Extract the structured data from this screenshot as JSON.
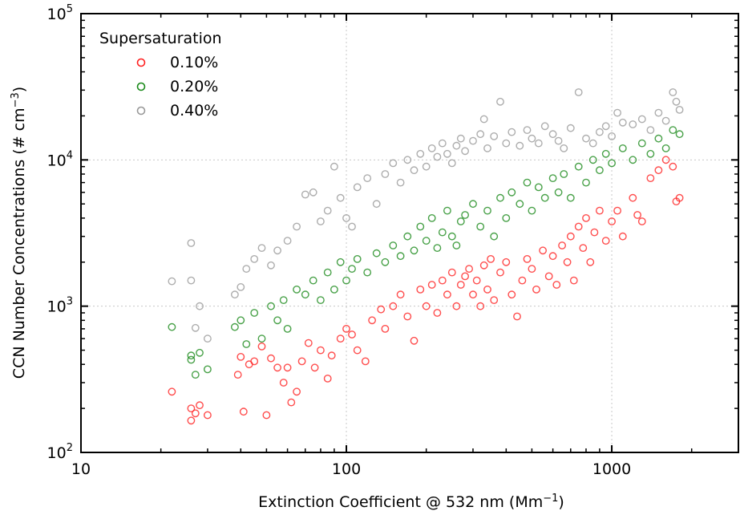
{
  "chart_data": {
    "type": "scatter",
    "xlabel_main": "Extinction Coefficient @ 532 nm (Mm",
    "xlabel_sup": "−1",
    "xlabel_end": ")",
    "ylabel_main": "CCN Number Concentrations (# cm",
    "ylabel_sup": "−3",
    "ylabel_end": ")",
    "x_scale": "log",
    "y_scale": "log",
    "xlim": [
      10,
      3000
    ],
    "ylim": [
      100,
      100000
    ],
    "x_ticks": [
      {
        "value": 10,
        "label": "10"
      },
      {
        "value": 100,
        "label": "100"
      },
      {
        "value": 1000,
        "label": "1000"
      }
    ],
    "y_ticks": [
      {
        "value": 100,
        "base": "10",
        "exp": "2"
      },
      {
        "value": 1000,
        "base": "10",
        "exp": "3"
      },
      {
        "value": 10000,
        "base": "10",
        "exp": "4"
      },
      {
        "value": 100000,
        "base": "10",
        "exp": "5"
      }
    ],
    "grid": true,
    "legend": {
      "title": "Supersaturation",
      "placement": "top-left"
    },
    "series": [
      {
        "name": "0.10%",
        "color": "#ff2020",
        "points": [
          [
            22,
            260
          ],
          [
            26,
            165
          ],
          [
            26,
            200
          ],
          [
            27,
            185
          ],
          [
            28,
            210
          ],
          [
            30,
            180
          ],
          [
            39,
            340
          ],
          [
            40,
            450
          ],
          [
            41,
            190
          ],
          [
            43,
            400
          ],
          [
            45,
            420
          ],
          [
            48,
            530
          ],
          [
            50,
            180
          ],
          [
            52,
            440
          ],
          [
            55,
            380
          ],
          [
            58,
            300
          ],
          [
            60,
            380
          ],
          [
            62,
            220
          ],
          [
            65,
            260
          ],
          [
            68,
            420
          ],
          [
            72,
            560
          ],
          [
            76,
            380
          ],
          [
            80,
            500
          ],
          [
            85,
            320
          ],
          [
            88,
            460
          ],
          [
            95,
            600
          ],
          [
            100,
            700
          ],
          [
            105,
            640
          ],
          [
            110,
            500
          ],
          [
            118,
            420
          ],
          [
            125,
            800
          ],
          [
            135,
            950
          ],
          [
            140,
            700
          ],
          [
            150,
            1000
          ],
          [
            160,
            1200
          ],
          [
            170,
            850
          ],
          [
            180,
            580
          ],
          [
            190,
            1300
          ],
          [
            200,
            1000
          ],
          [
            210,
            1400
          ],
          [
            220,
            900
          ],
          [
            230,
            1500
          ],
          [
            240,
            1200
          ],
          [
            250,
            1700
          ],
          [
            260,
            1000
          ],
          [
            270,
            1400
          ],
          [
            280,
            1600
          ],
          [
            290,
            1800
          ],
          [
            300,
            1200
          ],
          [
            310,
            1500
          ],
          [
            320,
            1000
          ],
          [
            330,
            1900
          ],
          [
            340,
            1300
          ],
          [
            350,
            2100
          ],
          [
            360,
            1100
          ],
          [
            380,
            1700
          ],
          [
            400,
            2000
          ],
          [
            420,
            1200
          ],
          [
            440,
            850
          ],
          [
            460,
            1500
          ],
          [
            480,
            2100
          ],
          [
            500,
            1800
          ],
          [
            520,
            1300
          ],
          [
            550,
            2400
          ],
          [
            580,
            1600
          ],
          [
            600,
            2200
          ],
          [
            620,
            1400
          ],
          [
            650,
            2600
          ],
          [
            680,
            2000
          ],
          [
            700,
            3000
          ],
          [
            720,
            1500
          ],
          [
            750,
            3500
          ],
          [
            780,
            2500
          ],
          [
            800,
            4000
          ],
          [
            830,
            2000
          ],
          [
            860,
            3200
          ],
          [
            900,
            4500
          ],
          [
            950,
            2800
          ],
          [
            1000,
            3800
          ],
          [
            1050,
            4500
          ],
          [
            1100,
            3000
          ],
          [
            1200,
            5500
          ],
          [
            1250,
            4200
          ],
          [
            1300,
            3800
          ],
          [
            1400,
            7500
          ],
          [
            1500,
            8500
          ],
          [
            1600,
            10000
          ],
          [
            1700,
            9000
          ],
          [
            1750,
            5200
          ],
          [
            1800,
            5500
          ]
        ]
      },
      {
        "name": "0.20%",
        "color": "#1a8a1a",
        "points": [
          [
            22,
            720
          ],
          [
            26,
            430
          ],
          [
            26,
            460
          ],
          [
            27,
            340
          ],
          [
            28,
            480
          ],
          [
            30,
            370
          ],
          [
            38,
            720
          ],
          [
            40,
            800
          ],
          [
            42,
            550
          ],
          [
            45,
            900
          ],
          [
            48,
            600
          ],
          [
            52,
            1000
          ],
          [
            55,
            800
          ],
          [
            58,
            1100
          ],
          [
            60,
            700
          ],
          [
            65,
            1300
          ],
          [
            70,
            1200
          ],
          [
            75,
            1500
          ],
          [
            80,
            1100
          ],
          [
            85,
            1700
          ],
          [
            90,
            1300
          ],
          [
            95,
            2000
          ],
          [
            100,
            1500
          ],
          [
            105,
            1800
          ],
          [
            110,
            2100
          ],
          [
            120,
            1700
          ],
          [
            130,
            2300
          ],
          [
            140,
            2000
          ],
          [
            150,
            2600
          ],
          [
            160,
            2200
          ],
          [
            170,
            3000
          ],
          [
            180,
            2400
          ],
          [
            190,
            3500
          ],
          [
            200,
            2800
          ],
          [
            210,
            4000
          ],
          [
            220,
            2500
          ],
          [
            230,
            3200
          ],
          [
            240,
            4500
          ],
          [
            250,
            3000
          ],
          [
            260,
            2600
          ],
          [
            270,
            3800
          ],
          [
            280,
            4200
          ],
          [
            300,
            5000
          ],
          [
            320,
            3500
          ],
          [
            340,
            4500
          ],
          [
            360,
            3000
          ],
          [
            380,
            5500
          ],
          [
            400,
            4000
          ],
          [
            420,
            6000
          ],
          [
            450,
            5000
          ],
          [
            480,
            7000
          ],
          [
            500,
            4500
          ],
          [
            530,
            6500
          ],
          [
            560,
            5500
          ],
          [
            600,
            7500
          ],
          [
            630,
            6000
          ],
          [
            660,
            8000
          ],
          [
            700,
            5500
          ],
          [
            750,
            9000
          ],
          [
            800,
            7000
          ],
          [
            850,
            10000
          ],
          [
            900,
            8500
          ],
          [
            950,
            11000
          ],
          [
            1000,
            9500
          ],
          [
            1100,
            12000
          ],
          [
            1200,
            10000
          ],
          [
            1300,
            13000
          ],
          [
            1400,
            11000
          ],
          [
            1500,
            14000
          ],
          [
            1600,
            12000
          ],
          [
            1700,
            16000
          ],
          [
            1800,
            15000
          ]
        ]
      },
      {
        "name": "0.40%",
        "color": "#999999",
        "points": [
          [
            22,
            1480
          ],
          [
            26,
            2700
          ],
          [
            26,
            1500
          ],
          [
            27,
            710
          ],
          [
            28,
            1000
          ],
          [
            30,
            600
          ],
          [
            38,
            1200
          ],
          [
            40,
            1350
          ],
          [
            42,
            1800
          ],
          [
            45,
            2100
          ],
          [
            48,
            2500
          ],
          [
            52,
            1900
          ],
          [
            55,
            2400
          ],
          [
            60,
            2800
          ],
          [
            65,
            3500
          ],
          [
            70,
            5800
          ],
          [
            75,
            6000
          ],
          [
            80,
            3800
          ],
          [
            85,
            4500
          ],
          [
            90,
            9000
          ],
          [
            95,
            5500
          ],
          [
            100,
            4000
          ],
          [
            105,
            3500
          ],
          [
            110,
            6500
          ],
          [
            120,
            7500
          ],
          [
            130,
            5000
          ],
          [
            140,
            8000
          ],
          [
            150,
            9500
          ],
          [
            160,
            7000
          ],
          [
            170,
            10000
          ],
          [
            180,
            8500
          ],
          [
            190,
            11000
          ],
          [
            200,
            9000
          ],
          [
            210,
            12000
          ],
          [
            220,
            10500
          ],
          [
            230,
            13000
          ],
          [
            240,
            11000
          ],
          [
            250,
            9500
          ],
          [
            260,
            12500
          ],
          [
            270,
            14000
          ],
          [
            280,
            11500
          ],
          [
            300,
            13500
          ],
          [
            320,
            15000
          ],
          [
            330,
            19000
          ],
          [
            340,
            12000
          ],
          [
            360,
            14500
          ],
          [
            380,
            25000
          ],
          [
            400,
            13000
          ],
          [
            420,
            15500
          ],
          [
            450,
            12500
          ],
          [
            480,
            16000
          ],
          [
            500,
            14000
          ],
          [
            530,
            13000
          ],
          [
            560,
            17000
          ],
          [
            600,
            15000
          ],
          [
            630,
            13500
          ],
          [
            660,
            12000
          ],
          [
            700,
            16500
          ],
          [
            750,
            29000
          ],
          [
            800,
            14000
          ],
          [
            850,
            13000
          ],
          [
            900,
            15500
          ],
          [
            950,
            17000
          ],
          [
            1000,
            14500
          ],
          [
            1050,
            21000
          ],
          [
            1100,
            18000
          ],
          [
            1200,
            17500
          ],
          [
            1300,
            19000
          ],
          [
            1400,
            16000
          ],
          [
            1500,
            21000
          ],
          [
            1600,
            18500
          ],
          [
            1700,
            29000
          ],
          [
            1750,
            25000
          ],
          [
            1800,
            22000
          ]
        ]
      }
    ]
  }
}
